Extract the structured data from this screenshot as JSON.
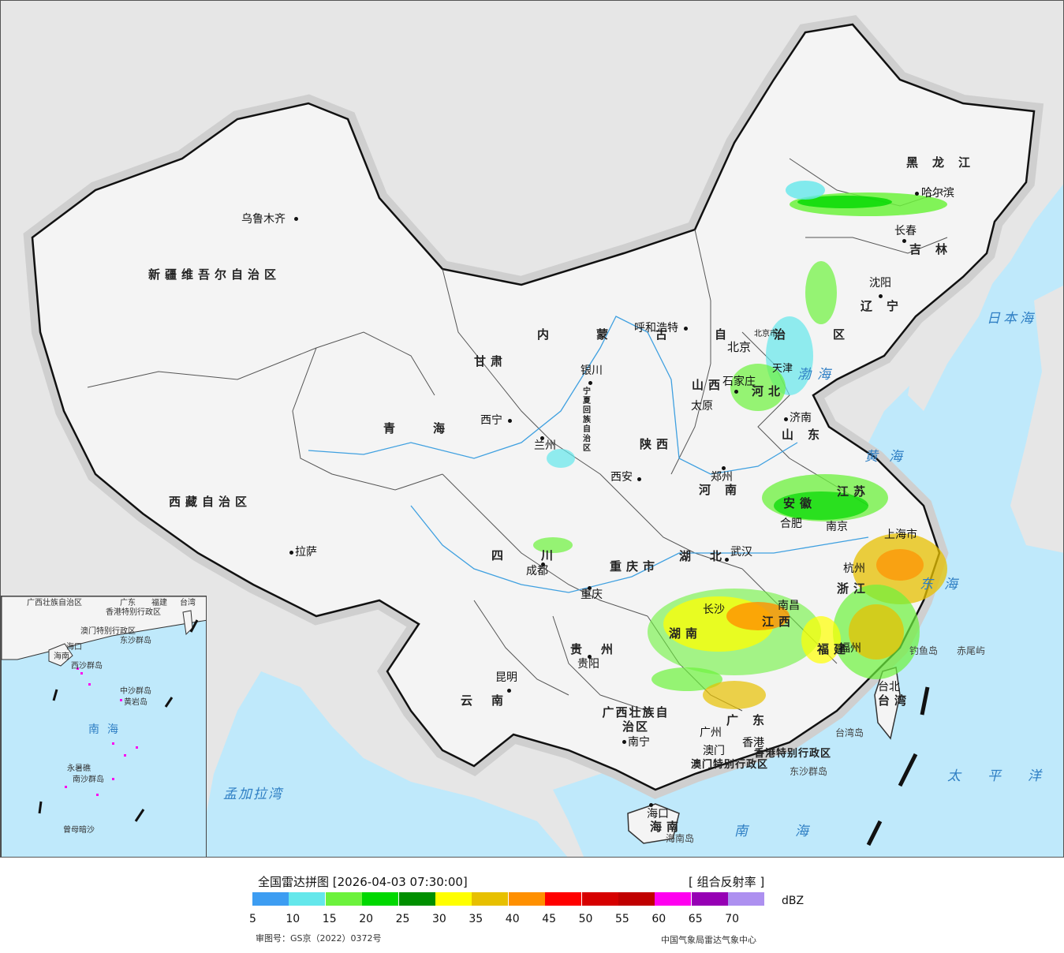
{
  "map": {
    "cities": [
      {
        "name": "乌鲁木齐"
      },
      {
        "name": "拉萨"
      },
      {
        "name": "西宁"
      },
      {
        "name": "兰州"
      },
      {
        "name": "银川"
      },
      {
        "name": "呼和浩特"
      },
      {
        "name": "北京"
      },
      {
        "name": "北京市"
      },
      {
        "name": "天津"
      },
      {
        "name": "石家庄"
      },
      {
        "name": "太原"
      },
      {
        "name": "济南"
      },
      {
        "name": "郑州"
      },
      {
        "name": "西安"
      },
      {
        "name": "成都"
      },
      {
        "name": "重庆"
      },
      {
        "name": "武汉"
      },
      {
        "name": "合肥"
      },
      {
        "name": "南京"
      },
      {
        "name": "上海市"
      },
      {
        "name": "杭州"
      },
      {
        "name": "南昌"
      },
      {
        "name": "长沙"
      },
      {
        "name": "福州"
      },
      {
        "name": "贵阳"
      },
      {
        "name": "昆明"
      },
      {
        "name": "南宁"
      },
      {
        "name": "广州"
      },
      {
        "name": "香港"
      },
      {
        "name": "澳门"
      },
      {
        "name": "海口"
      },
      {
        "name": "台北"
      },
      {
        "name": "沈阳"
      },
      {
        "name": "长春"
      },
      {
        "name": "哈尔滨"
      }
    ],
    "provinces": [
      "新疆维吾尔自治区",
      "西藏自治区",
      "青海",
      "甘肃",
      "内蒙古自治区",
      "黑龙江",
      "吉林",
      "辽宁",
      "河北",
      "山西",
      "山东",
      "陕西",
      "河南",
      "四川",
      "重庆市",
      "湖北",
      "安徽",
      "江苏",
      "浙江",
      "江西",
      "湖南",
      "贵州",
      "云南",
      "广西壮族自治区",
      "广东",
      "福建",
      "台湾",
      "海南",
      "宁夏回族自治区",
      "香港特别行政区",
      "澳门特别行政区"
    ],
    "seas": [
      "日本海",
      "渤海",
      "黄海",
      "东海",
      "太平洋",
      "南海",
      "孟加拉湾"
    ],
    "islands": [
      "钓鱼岛",
      "赤尾屿",
      "台湾岛",
      "东沙群岛",
      "海南岛"
    ],
    "inset_labels": [
      "广西壮族自治区",
      "广东",
      "福建",
      "台湾",
      "香港特别行政区",
      "澳门特别行政区",
      "海口",
      "海南",
      "东沙群岛",
      "西沙群岛",
      "中沙群岛",
      "黄岩岛",
      "南海",
      "南沙群岛",
      "永暑礁",
      "曾母暗沙"
    ]
  },
  "legend": {
    "title": "全国雷达拼图 [2026-04-03 07:30:00]",
    "product": "[ 组合反射率 ]",
    "unit": "dBZ",
    "colors": [
      "#3d9df2",
      "#64e7eb",
      "#6cf23c",
      "#00d800",
      "#008f00",
      "#ffff00",
      "#e7c000",
      "#ff9000",
      "#ff0000",
      "#d60000",
      "#c00000",
      "#ff00f0",
      "#9600b4",
      "#ad90f0"
    ],
    "ticks": [
      "5",
      "10",
      "15",
      "20",
      "25",
      "30",
      "35",
      "40",
      "45",
      "50",
      "55",
      "60",
      "65",
      "70"
    ]
  },
  "footer": {
    "review_number": "审图号：GS京（2022）0372号",
    "source": "中国气象局雷达气象中心"
  }
}
